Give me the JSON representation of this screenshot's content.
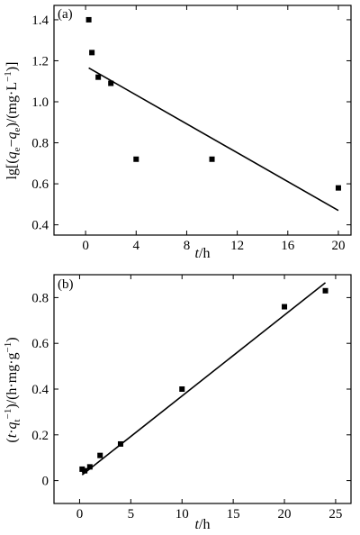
{
  "chart_data": [
    {
      "type": "scatter",
      "panel_label": "(a)",
      "xlabel": "t/h",
      "ylabel": "lg[(qe−qe)/(mg·L−1)]",
      "xlim": [
        -2.5,
        21
      ],
      "ylim": [
        0.35,
        1.47
      ],
      "xticks": [
        0,
        4,
        8,
        12,
        16,
        20
      ],
      "yticks": [
        0.4,
        0.6,
        0.8,
        1.0,
        1.2,
        1.4
      ],
      "ytick_labels": [
        "0.4",
        "0.6",
        "0.8",
        "1.0",
        "1.2",
        "1.4"
      ],
      "points": [
        {
          "x": 0.25,
          "y": 1.4
        },
        {
          "x": 0.5,
          "y": 1.24
        },
        {
          "x": 1.0,
          "y": 1.12
        },
        {
          "x": 2.0,
          "y": 1.09
        },
        {
          "x": 4.0,
          "y": 0.72
        },
        {
          "x": 10.0,
          "y": 0.72
        },
        {
          "x": 20.0,
          "y": 0.58
        }
      ],
      "fit_line": [
        {
          "x": 0.25,
          "y": 1.165
        },
        {
          "x": 20.0,
          "y": 0.47
        }
      ]
    },
    {
      "type": "scatter",
      "panel_label": "(b)",
      "xlabel": "t/h",
      "ylabel": "(t·qt−1)/(h·mg·g−1)",
      "xlim": [
        -2.5,
        26.5
      ],
      "ylim": [
        -0.1,
        0.9
      ],
      "xticks": [
        0,
        5,
        10,
        15,
        20,
        25
      ],
      "yticks": [
        0,
        0.2,
        0.4,
        0.6,
        0.8
      ],
      "ytick_labels": [
        "0",
        "0.2",
        "0.4",
        "0.6",
        "0.8"
      ],
      "points": [
        {
          "x": 0.25,
          "y": 0.05
        },
        {
          "x": 0.5,
          "y": 0.043
        },
        {
          "x": 1.0,
          "y": 0.06
        },
        {
          "x": 2.0,
          "y": 0.11
        },
        {
          "x": 4.0,
          "y": 0.16
        },
        {
          "x": 10.0,
          "y": 0.4
        },
        {
          "x": 20.0,
          "y": 0.76
        },
        {
          "x": 24.0,
          "y": 0.83
        }
      ],
      "fit_line": [
        {
          "x": 0.25,
          "y": 0.025
        },
        {
          "x": 24.0,
          "y": 0.865
        }
      ]
    }
  ]
}
